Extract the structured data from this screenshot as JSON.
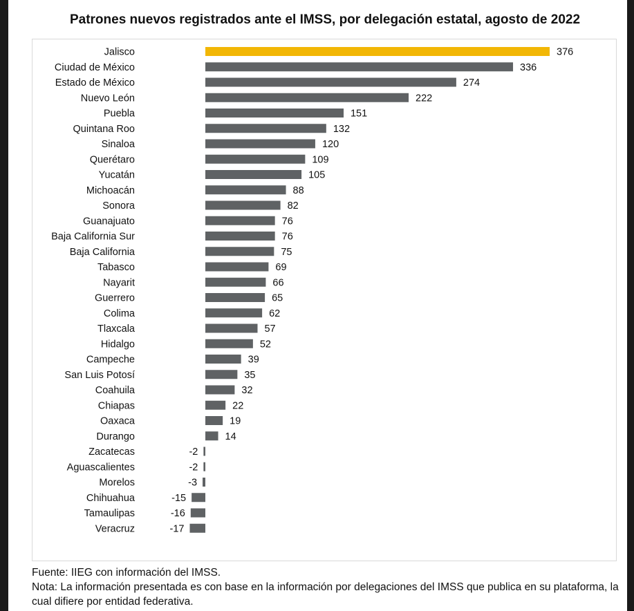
{
  "title": "Patrones nuevos registrados ante el IMSS, por delegación estatal, agosto de 2022",
  "source": "Fuente: IIEG con información del IMSS.",
  "note": "Nota: La información presentada es con base en la información por delegaciones del IMSS que publica en su plataforma, la cual difiere por entidad federativa.",
  "colors": {
    "highlight": "#f2b705",
    "bar": "#5f6264"
  },
  "chart_data": {
    "type": "bar",
    "orientation": "horizontal",
    "title": "Patrones nuevos registrados ante el IMSS, por delegación estatal, agosto de 2022",
    "xlabel": "",
    "ylabel": "",
    "grid": false,
    "legend": "none",
    "highlight": "Jalisco",
    "xlim": [
      -17,
      376
    ],
    "categories": [
      "Jalisco",
      "Ciudad de México",
      "Estado de México",
      "Nuevo León",
      "Puebla",
      "Quintana Roo",
      "Sinaloa",
      "Querétaro",
      "Yucatán",
      "Michoacán",
      "Sonora",
      "Guanajuato",
      "Baja California Sur",
      "Baja California",
      "Tabasco",
      "Nayarit",
      "Guerrero",
      "Colima",
      "Tlaxcala",
      "Hidalgo",
      "Campeche",
      "San Luis Potosí",
      "Coahuila",
      "Chiapas",
      "Oaxaca",
      "Durango",
      "Zacatecas",
      "Aguascalientes",
      "Morelos",
      "Chihuahua",
      "Tamaulipas",
      "Veracruz"
    ],
    "values": [
      376,
      336,
      274,
      222,
      151,
      132,
      120,
      109,
      105,
      88,
      82,
      76,
      76,
      75,
      69,
      66,
      65,
      62,
      57,
      52,
      39,
      35,
      32,
      22,
      19,
      14,
      -2,
      -2,
      -3,
      -15,
      -16,
      -17
    ]
  }
}
